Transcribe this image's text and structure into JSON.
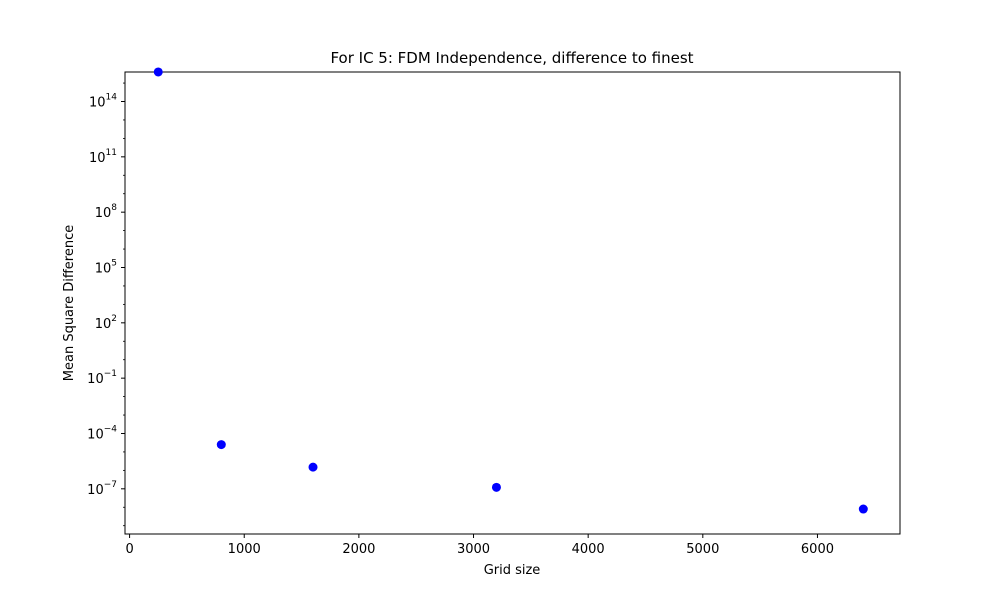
{
  "chart_data": {
    "type": "scatter",
    "title": "For IC 5: FDM Independence, difference to finest",
    "xlabel": "Grid size",
    "ylabel": "Mean Square Difference",
    "xscale": "linear",
    "yscale": "log",
    "xlim": [
      -40,
      6720
    ],
    "ylim_log10": [
      -9.45,
      15.6
    ],
    "xticks": [
      0,
      1000,
      2000,
      3000,
      4000,
      5000,
      6000
    ],
    "xtick_labels": [
      "0",
      "1000",
      "2000",
      "3000",
      "4000",
      "5000",
      "6000"
    ],
    "yticks_log10": [
      14,
      11,
      8,
      5,
      2,
      -1,
      -4,
      -7
    ],
    "ytick_labels": [
      {
        "base": "10",
        "exp": "14"
      },
      {
        "base": "10",
        "exp": "11"
      },
      {
        "base": "10",
        "exp": "8"
      },
      {
        "base": "10",
        "exp": "5"
      },
      {
        "base": "10",
        "exp": "2"
      },
      {
        "base": "10",
        "exp": "−1"
      },
      {
        "base": "10",
        "exp": "−4"
      },
      {
        "base": "10",
        "exp": "−7"
      }
    ],
    "grid": false,
    "legend": "none",
    "marker_color": "#0000ff",
    "series": [
      {
        "x": [
          250,
          800,
          1600,
          3200,
          6400
        ],
        "y": [
          4000000000000000.0,
          2.5e-05,
          1.5e-06,
          1.2e-07,
          8e-09
        ]
      }
    ]
  }
}
